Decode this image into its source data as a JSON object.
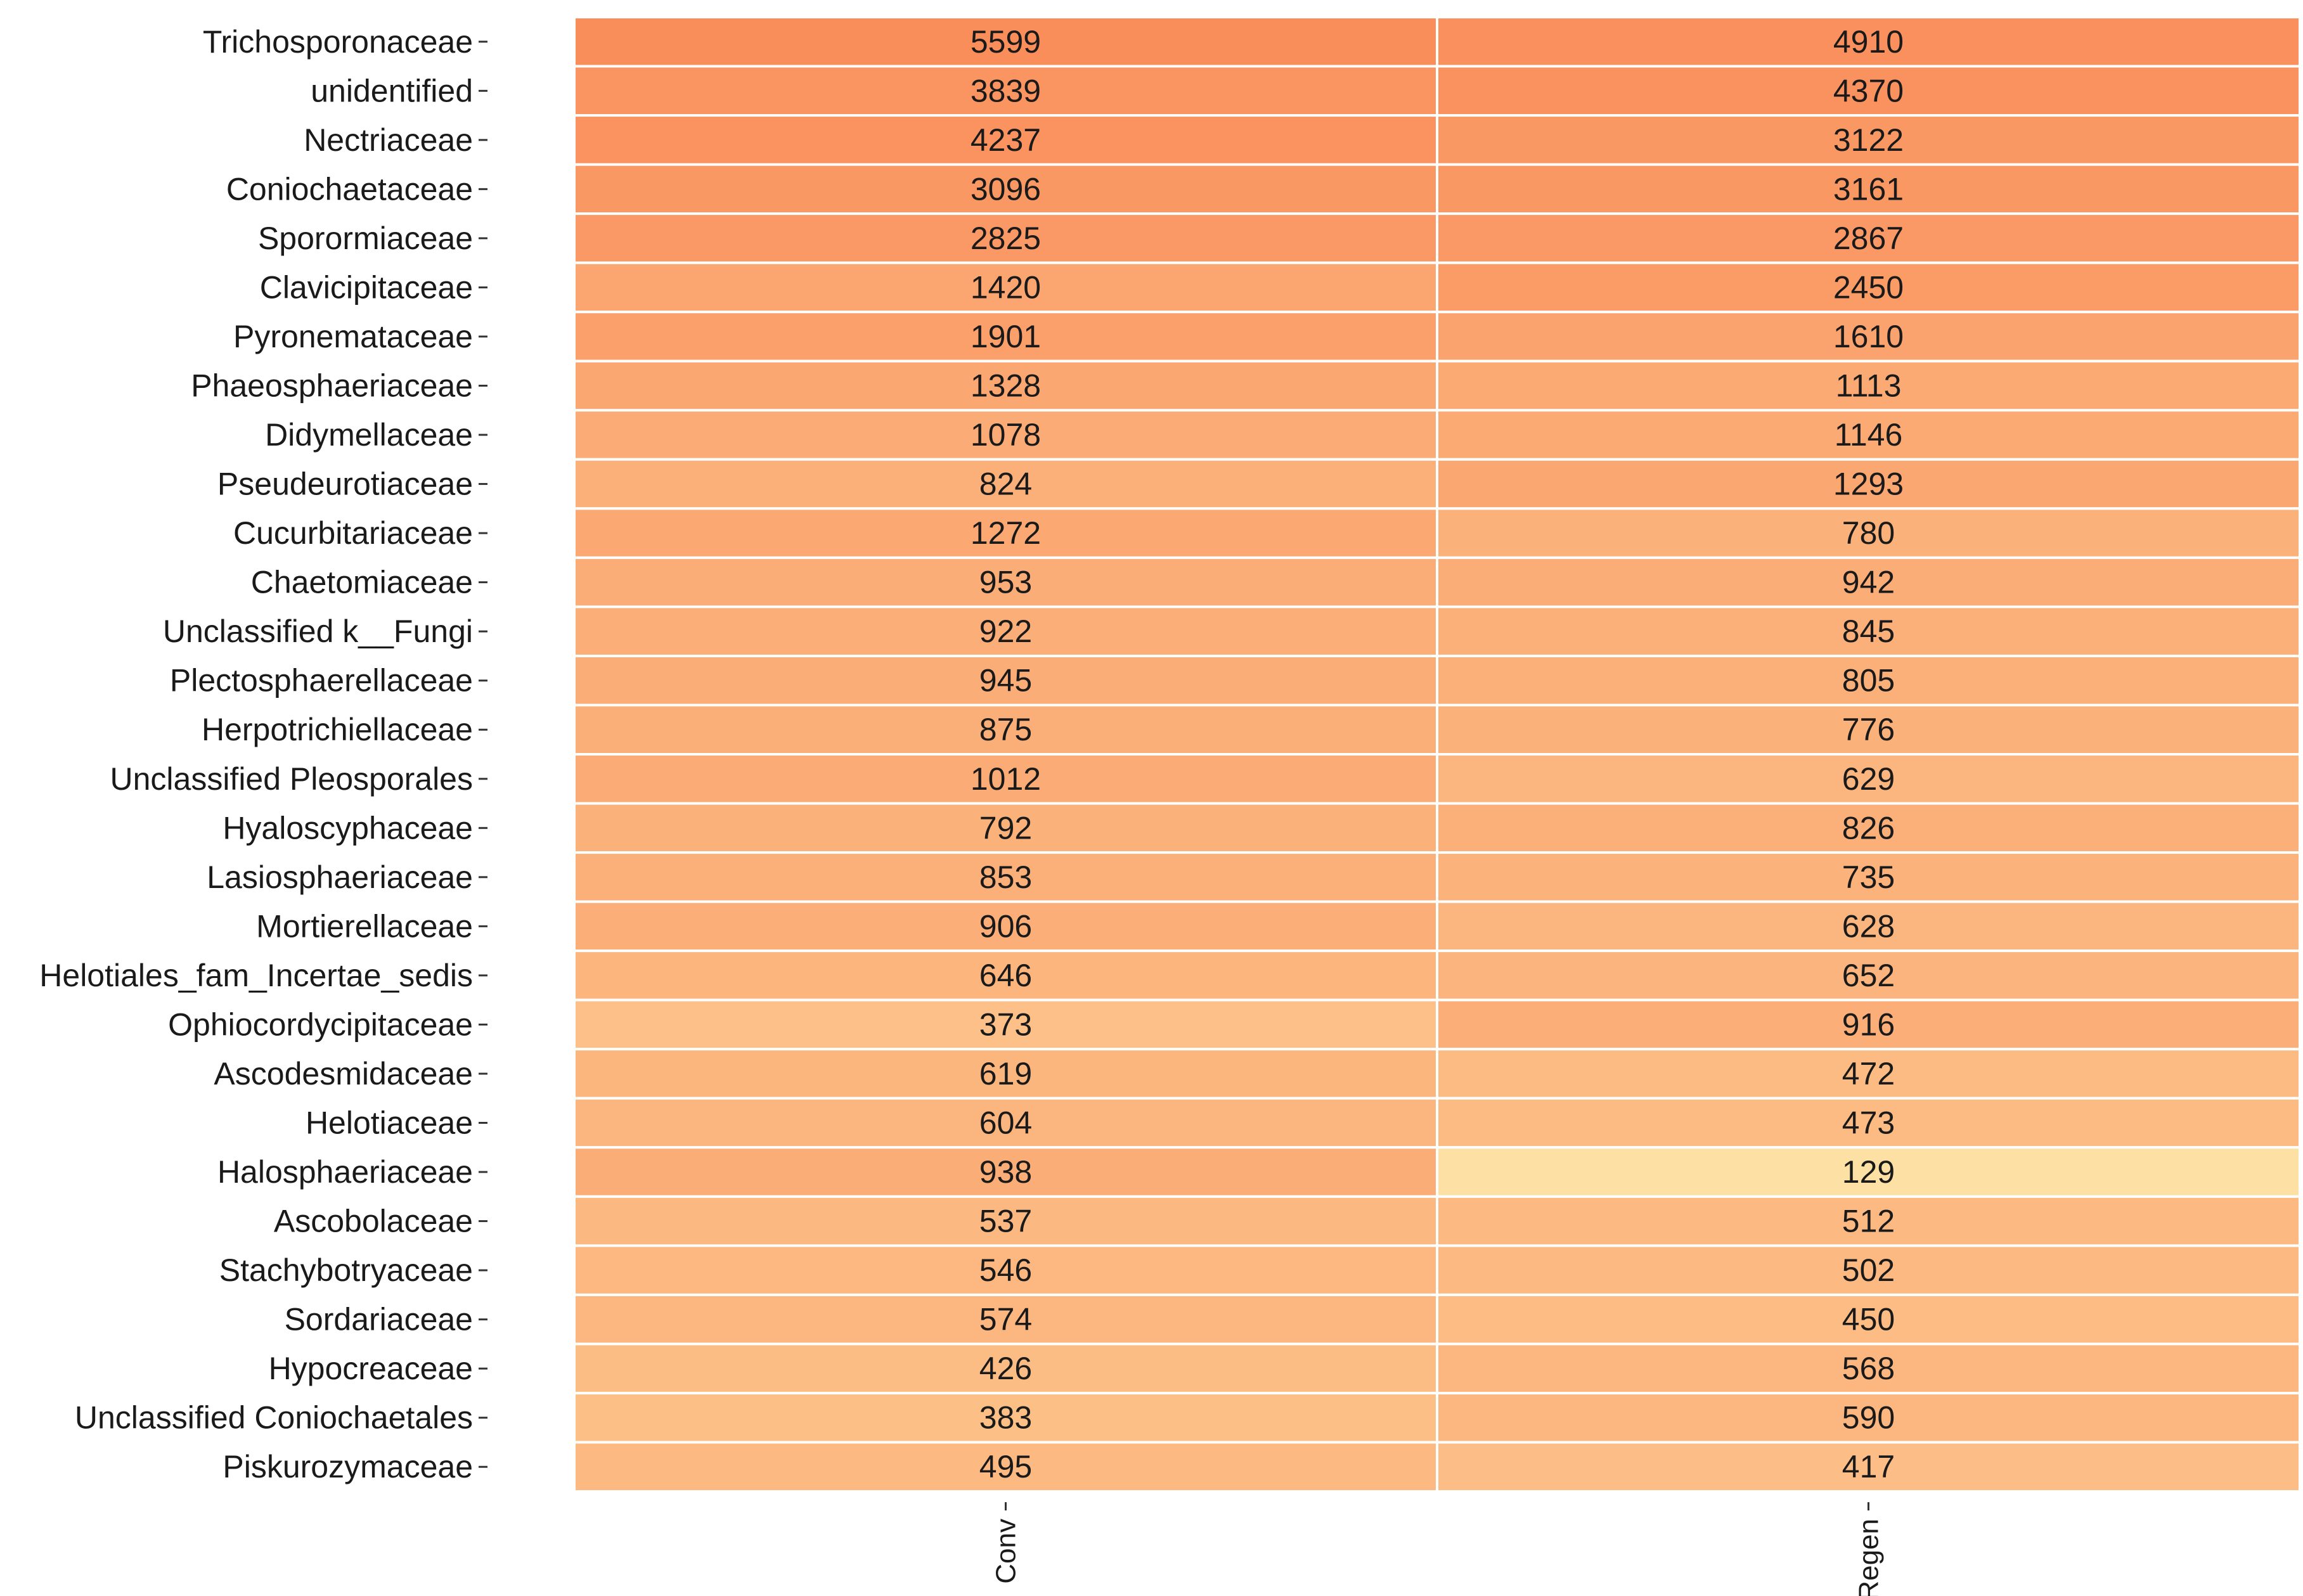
{
  "chart_data": {
    "type": "heatmap",
    "title": "",
    "xlabel": "",
    "ylabel": "",
    "columns": [
      "Conv",
      "Regen"
    ],
    "rows": [
      "Trichosporonaceae",
      "unidentified",
      "Nectriaceae",
      "Coniochaetaceae",
      "Sporormiaceae",
      "Clavicipitaceae",
      "Pyronemataceae",
      "Phaeosphaeriaceae",
      "Didymellaceae",
      "Pseudeurotiaceae",
      "Cucurbitariaceae",
      "Chaetomiaceae",
      "Unclassified k__Fungi",
      "Plectosphaerellaceae",
      "Herpotrichiellaceae",
      "Unclassified Pleosporales",
      "Hyaloscyphaceae",
      "Lasiosphaeriaceae",
      "Mortierellaceae",
      "Helotiales_fam_Incertae_sedis",
      "Ophiocordycipitaceae",
      "Ascodesmidaceae",
      "Helotiaceae",
      "Halosphaeriaceae",
      "Ascobolaceae",
      "Stachybotryaceae",
      "Sordariaceae",
      "Hypocreaceae",
      "Unclassified Coniochaetales",
      "Piskurozymaceae"
    ],
    "values": [
      [
        5599,
        4910
      ],
      [
        3839,
        4370
      ],
      [
        4237,
        3122
      ],
      [
        3096,
        3161
      ],
      [
        2825,
        2867
      ],
      [
        1420,
        2450
      ],
      [
        1901,
        1610
      ],
      [
        1328,
        1113
      ],
      [
        1078,
        1146
      ],
      [
        824,
        1293
      ],
      [
        1272,
        780
      ],
      [
        953,
        942
      ],
      [
        922,
        845
      ],
      [
        945,
        805
      ],
      [
        875,
        776
      ],
      [
        1012,
        629
      ],
      [
        792,
        826
      ],
      [
        853,
        735
      ],
      [
        906,
        628
      ],
      [
        646,
        652
      ],
      [
        373,
        916
      ],
      [
        619,
        472
      ],
      [
        604,
        473
      ],
      [
        938,
        129
      ],
      [
        537,
        512
      ],
      [
        546,
        502
      ],
      [
        574,
        450
      ],
      [
        426,
        568
      ],
      [
        383,
        590
      ],
      [
        495,
        417
      ]
    ],
    "color_low": "#fde0a4",
    "color_high": "#fa8e5b",
    "grid_color": "#ffffff",
    "legend": "none"
  }
}
